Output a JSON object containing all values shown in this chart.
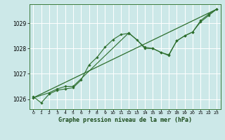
{
  "title": "Graphe pression niveau de la mer (hPa)",
  "bg_color": "#cce8e8",
  "grid_color": "#ffffff",
  "line_color": "#2d6e2d",
  "xlim": [
    -0.5,
    23.5
  ],
  "ylim": [
    1025.6,
    1029.75
  ],
  "xticks": [
    0,
    1,
    2,
    3,
    4,
    5,
    6,
    7,
    8,
    9,
    10,
    11,
    12,
    13,
    14,
    15,
    16,
    17,
    18,
    19,
    20,
    21,
    22,
    23
  ],
  "yticks": [
    1026,
    1027,
    1028,
    1029
  ],
  "series1_x": [
    0,
    1,
    2,
    3,
    4,
    5,
    6,
    7,
    8,
    9,
    10,
    11,
    12,
    13,
    14,
    15,
    16,
    17,
    18,
    19,
    20,
    21,
    22,
    23
  ],
  "series1_y": [
    1026.1,
    1025.85,
    1026.2,
    1026.35,
    1026.4,
    1026.45,
    1026.75,
    1027.35,
    1027.65,
    1028.05,
    1028.35,
    1028.55,
    1028.6,
    1028.35,
    1028.0,
    1028.0,
    1027.85,
    1027.75,
    1028.3,
    1028.5,
    1028.65,
    1029.1,
    1029.35,
    1029.55
  ],
  "series2_x": [
    0,
    2,
    3,
    4,
    5,
    12,
    14,
    15,
    16,
    17,
    18,
    19,
    20,
    21,
    22,
    23
  ],
  "series2_y": [
    1026.05,
    1026.25,
    1026.4,
    1026.5,
    1026.5,
    1028.62,
    1028.05,
    1028.0,
    1027.85,
    1027.72,
    1028.3,
    1028.5,
    1028.65,
    1029.05,
    1029.3,
    1029.55
  ],
  "series3_x": [
    0,
    23
  ],
  "series3_y": [
    1026.05,
    1029.55
  ],
  "xlabel_color": "#1a4a1a",
  "spine_color": "#3a7a3a"
}
